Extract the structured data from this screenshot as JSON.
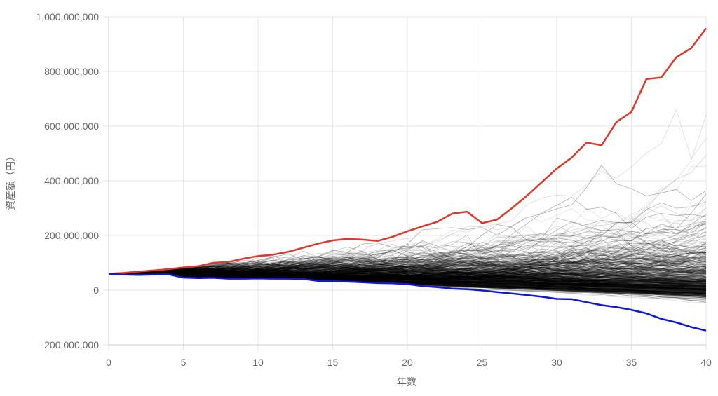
{
  "chart_data": {
    "type": "line",
    "xlabel": "年数",
    "ylabel": "資産額（円）",
    "xlim": [
      0,
      40
    ],
    "ylim": [
      -200000000,
      1000000000
    ],
    "x_ticks": [
      0,
      5,
      10,
      15,
      20,
      25,
      30,
      35,
      40
    ],
    "y_ticks": [
      -200000000,
      0,
      200000000,
      400000000,
      600000000,
      800000000,
      1000000000
    ],
    "x_tick_labels": [
      "0",
      "5",
      "10",
      "15",
      "20",
      "25",
      "30",
      "35",
      "40"
    ],
    "y_tick_labels": [
      "-200,000,000",
      "0",
      "200,000,000",
      "400,000,000",
      "600,000,000",
      "800,000,000",
      "1,000,000,000"
    ],
    "grid": true,
    "legend": "none",
    "simulation_paths": 500,
    "start_value": 60000000,
    "colors": {
      "highlight_max": "#d93a2b",
      "highlight_min": "#1018d6",
      "paths": "#000000",
      "grid": "#e6e6e6",
      "text": "#666666"
    },
    "highlight_series": [
      {
        "role": "max",
        "x": [
          0,
          1,
          2,
          3,
          4,
          5,
          6,
          7,
          8,
          9,
          10,
          11,
          12,
          13,
          14,
          15,
          16,
          17,
          18,
          19,
          20,
          21,
          22,
          23,
          24,
          25,
          26,
          27,
          28,
          29,
          30,
          31,
          32,
          33,
          34,
          35,
          36,
          37,
          38,
          39,
          40
        ],
        "values": [
          60000000,
          63000000,
          68000000,
          72000000,
          77000000,
          83000000,
          88000000,
          100000000,
          103000000,
          115000000,
          125000000,
          130000000,
          140000000,
          155000000,
          170000000,
          182000000,
          188000000,
          185000000,
          180000000,
          195000000,
          215000000,
          233000000,
          250000000,
          280000000,
          287000000,
          245000000,
          258000000,
          300000000,
          345000000,
          395000000,
          445000000,
          485000000,
          540000000,
          530000000,
          615000000,
          652000000,
          772000000,
          778000000,
          852000000,
          885000000,
          958000000
        ]
      },
      {
        "role": "min",
        "x": [
          0,
          1,
          2,
          3,
          4,
          5,
          6,
          7,
          8,
          9,
          10,
          11,
          12,
          13,
          14,
          15,
          16,
          17,
          18,
          19,
          20,
          21,
          22,
          23,
          24,
          25,
          26,
          27,
          28,
          29,
          30,
          31,
          32,
          33,
          34,
          35,
          36,
          37,
          38,
          39,
          40
        ],
        "values": [
          60000000,
          57000000,
          56000000,
          57000000,
          58000000,
          46000000,
          44000000,
          45000000,
          42000000,
          42000000,
          43000000,
          42000000,
          42000000,
          41000000,
          34000000,
          33000000,
          31000000,
          29000000,
          26000000,
          25000000,
          22000000,
          15000000,
          11000000,
          6000000,
          3000000,
          -1000000,
          -7000000,
          -12000000,
          -18000000,
          -24000000,
          -32000000,
          -33000000,
          -44000000,
          -55000000,
          -62000000,
          -72000000,
          -85000000,
          -105000000,
          -118000000,
          -135000000,
          -148000000
        ]
      }
    ]
  }
}
